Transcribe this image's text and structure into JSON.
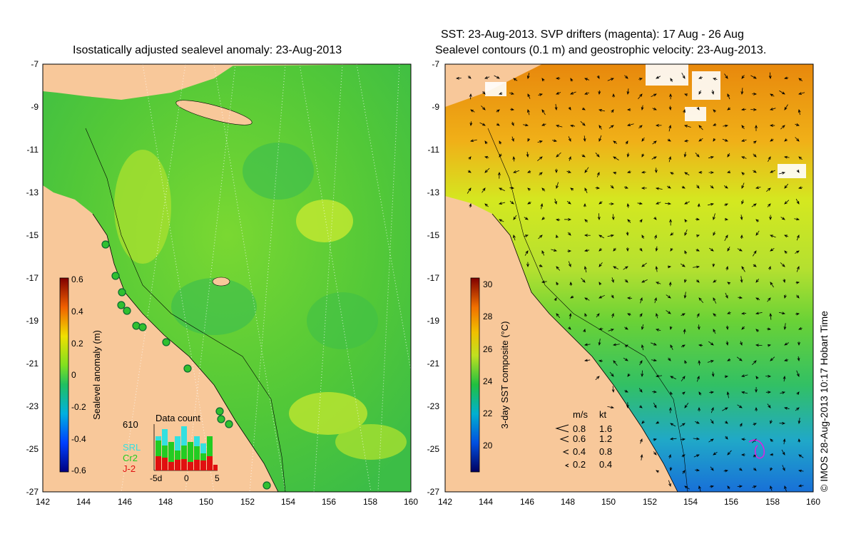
{
  "left_panel": {
    "title": "Isostatically adjusted sealevel anomaly: 23-Aug-2013",
    "colorbar": {
      "label": "Sealevel anomaly (m)",
      "min": -0.6,
      "max": 0.6,
      "ticks": [
        "0.6",
        "0.4",
        "0.2",
        "0",
        "-0.2",
        "-0.4",
        "-0.6"
      ]
    },
    "data_count": {
      "title": "Data count",
      "max_label": "610",
      "legend": [
        {
          "name": "SRL",
          "color": "#33e0e0"
        },
        {
          "name": "Cr2",
          "color": "#22cc22"
        },
        {
          "name": "J-2",
          "color": "#e01010"
        }
      ],
      "x_labels": [
        "-5d",
        "0",
        "5"
      ]
    }
  },
  "right_panel": {
    "title_line1": "SST: 23-Aug-2013. SVP drifters (magenta): 17 Aug - 26 Aug",
    "title_line2": "Sealevel contours (0.1 m) and geostrophic velocity: 23-Aug-2013.",
    "colorbar": {
      "label": "3-day SST composite (°C)",
      "min": 18,
      "max": 30,
      "ticks": [
        "30",
        "28",
        "26",
        "24",
        "22",
        "20"
      ]
    },
    "velocity_legend": {
      "header_ms": "m/s",
      "header_kt": "kt",
      "rows": [
        {
          "ms": "0.8",
          "kt": "1.6"
        },
        {
          "ms": "0.6",
          "kt": "1.2"
        },
        {
          "ms": "0.4",
          "kt": "0.8"
        },
        {
          "ms": "0.2",
          "kt": "0.4"
        }
      ]
    }
  },
  "axes": {
    "lat_ticks": [
      "-7",
      "-9",
      "-11",
      "-13",
      "-15",
      "-17",
      "-19",
      "-21",
      "-23",
      "-25",
      "-27"
    ],
    "lon_ticks": [
      "142",
      "144",
      "146",
      "148",
      "150",
      "152",
      "154",
      "156",
      "158",
      "160"
    ]
  },
  "copyright": "© IMOS 28-Aug-2013 10:17 Hobart Time",
  "colors": {
    "land": "#f8c89a",
    "sea_green": "#5ad23c",
    "sst_orange": "#f0a010",
    "sst_yellow": "#d8e820",
    "sst_blue": "#1890d8"
  }
}
